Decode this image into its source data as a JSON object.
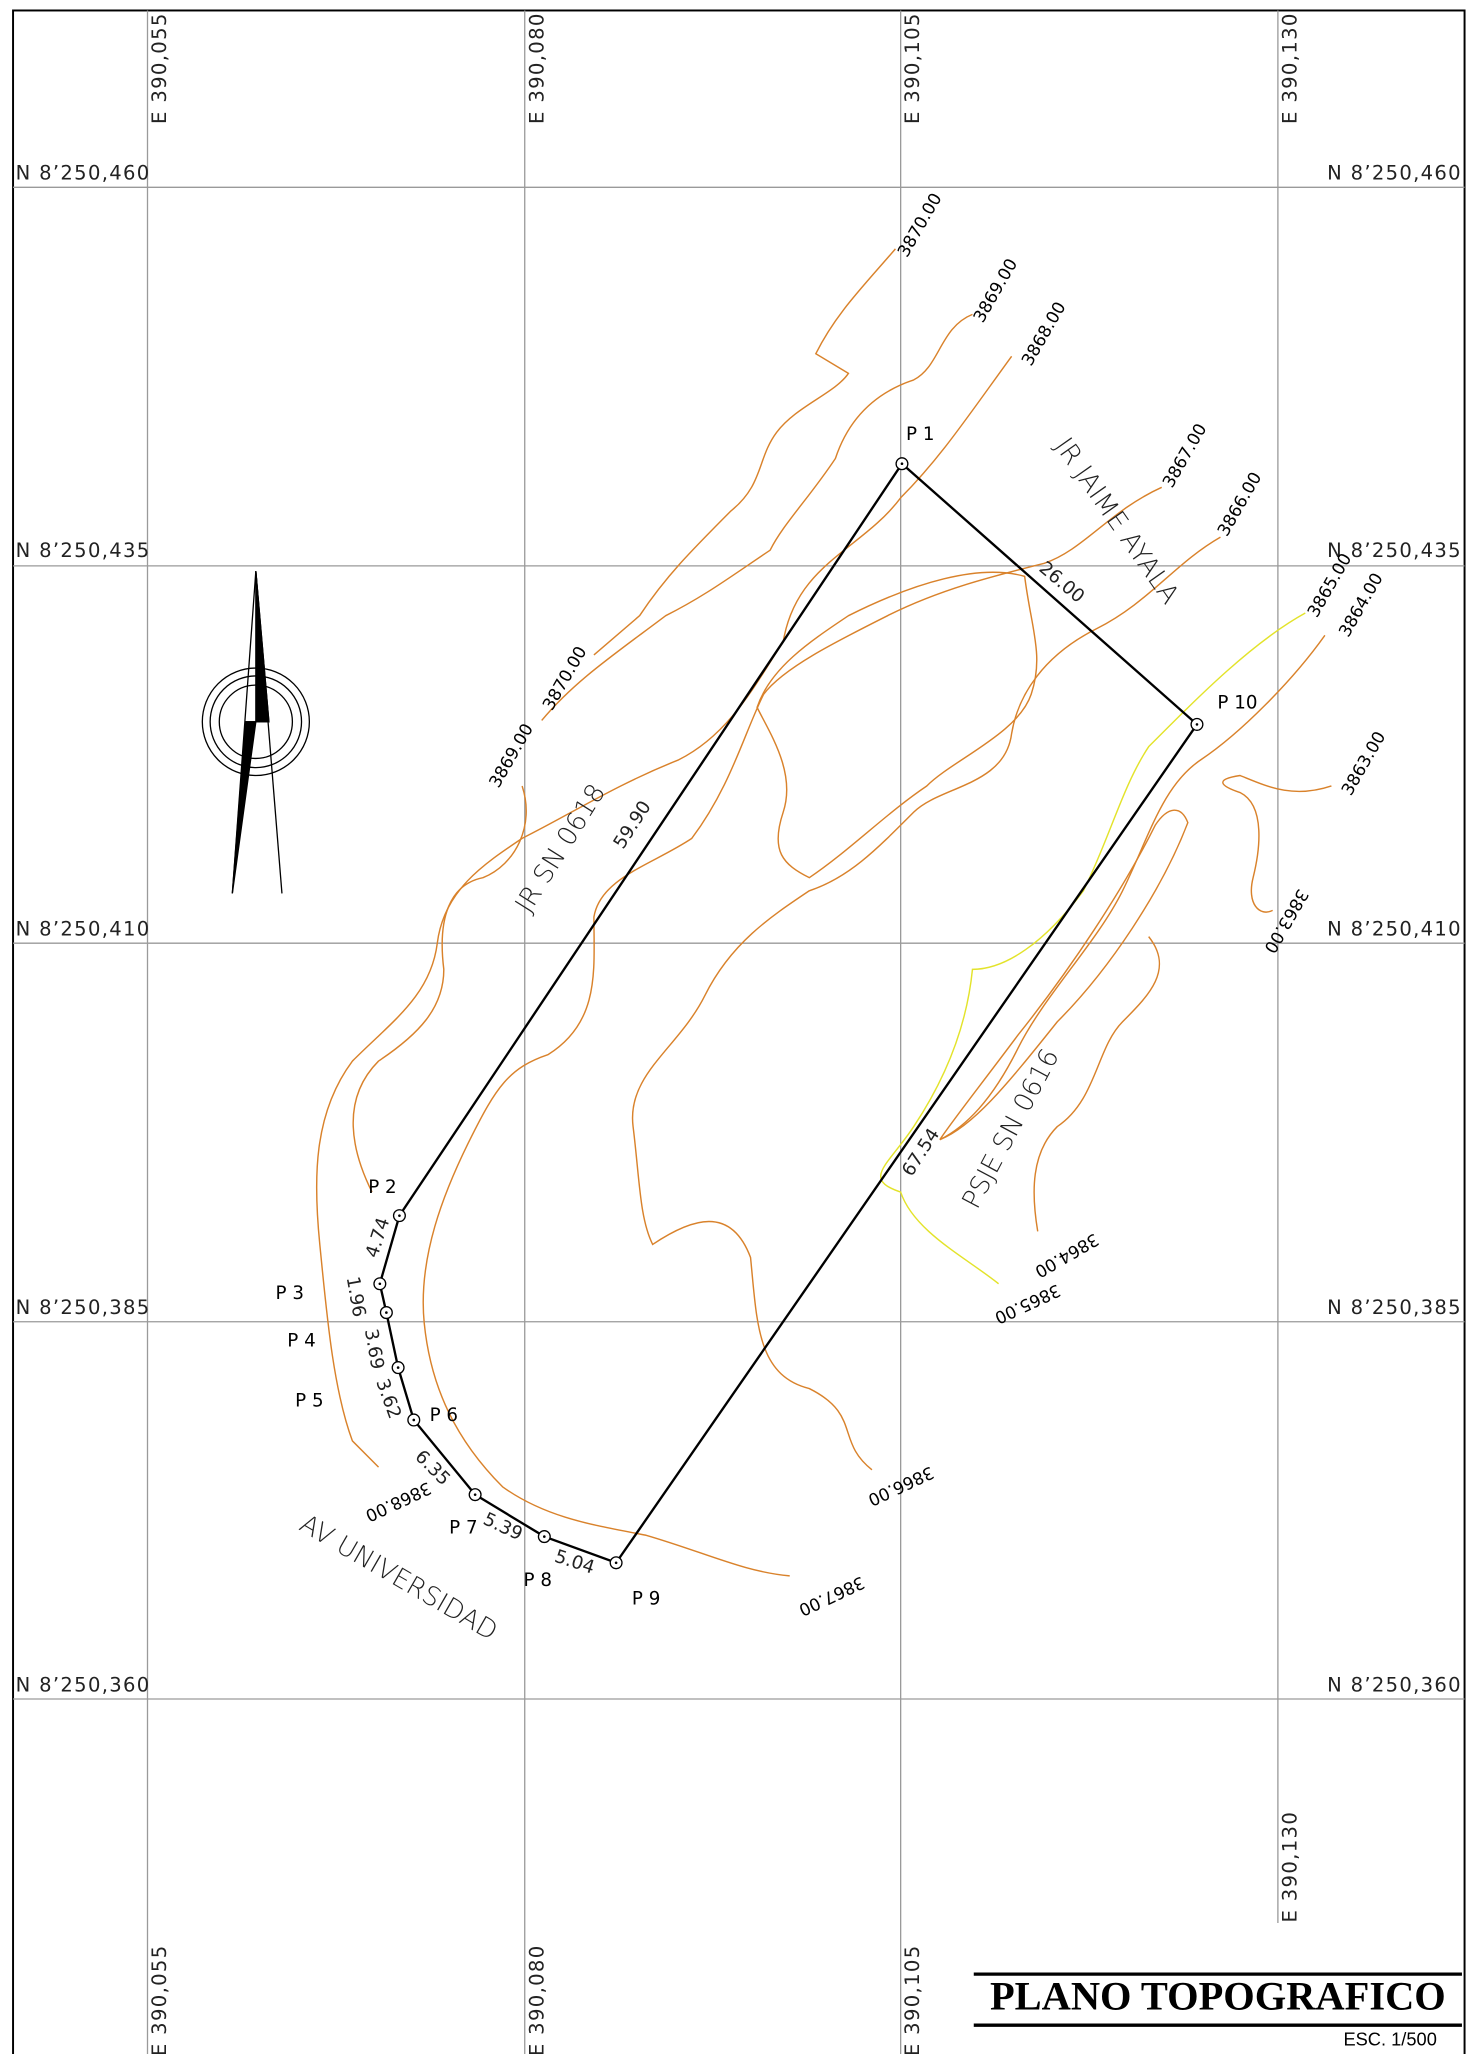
{
  "title": "PLANO TOPOGRAFICO",
  "scale": "ESC. 1/500",
  "grid": {
    "eastings": [
      "E 390,055",
      "E 390,080",
      "E 390,105",
      "E 390,130"
    ],
    "northings": [
      "N 8’250,460",
      "N 8’250,435",
      "N 8’250,410",
      "N 8’250,385",
      "N 8’250,360"
    ]
  },
  "points": [
    "P 1",
    "P 2",
    "P 3",
    "P 4",
    "P 5",
    "P 6",
    "P 7",
    "P 8",
    "P 9",
    "P 10"
  ],
  "distances": [
    "26.00",
    "59.90",
    "67.54",
    "4.74",
    "1.96",
    "3.69",
    "3.62",
    "6.35",
    "5.39",
    "5.04"
  ],
  "contours": [
    "3870.00",
    "3869.00",
    "3868.00",
    "3867.00",
    "3866.00",
    "3865.00",
    "3864.00",
    "3863.00",
    "3870.00",
    "3869.00",
    "3863.00",
    "3864.00",
    "3865.00",
    "3866.00",
    "3867.00",
    "3868.00"
  ],
  "streets": [
    "JR JAIME AYALA",
    "JR SN 0618",
    "PSJE SN 0616",
    "AV UNIVERSIDAD"
  ]
}
